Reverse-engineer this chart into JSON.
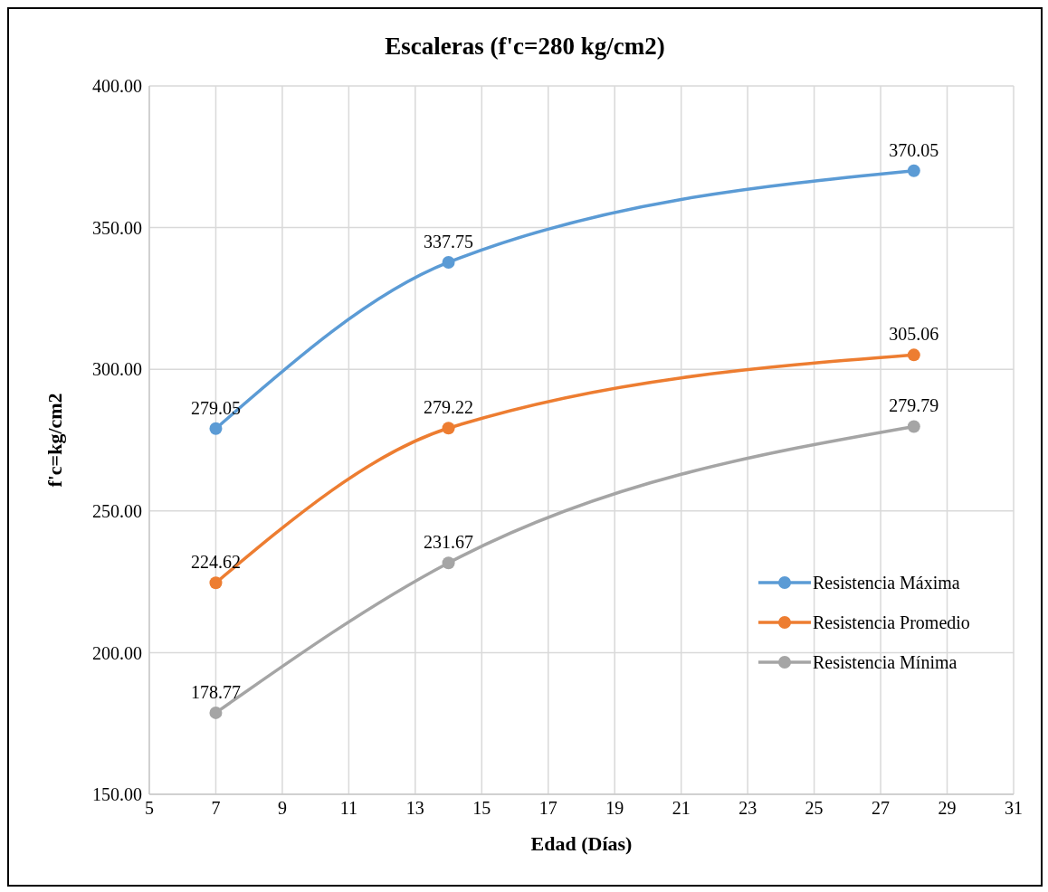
{
  "chart_data": {
    "type": "line",
    "title": "Escaleras (f'c=280 kg/cm2)",
    "xlabel": "Edad (Días)",
    "ylabel": "f'c=kg/cm2",
    "x": [
      7,
      14,
      28
    ],
    "series": [
      {
        "name": "Resistencia Máxima",
        "color": "#5b9bd5",
        "values": [
          279.05,
          337.75,
          370.05
        ]
      },
      {
        "name": "Resistencia Promedio",
        "color": "#ed7d31",
        "values": [
          224.62,
          279.22,
          305.06
        ]
      },
      {
        "name": "Resistencia Mínima",
        "color": "#a5a5a5",
        "values": [
          178.77,
          231.67,
          279.79
        ]
      }
    ],
    "xlim": [
      5,
      31
    ],
    "xticks": [
      5,
      7,
      9,
      11,
      13,
      15,
      17,
      19,
      21,
      23,
      25,
      27,
      29,
      31
    ],
    "ylim": [
      150,
      400
    ],
    "yticks": [
      {
        "value": 150,
        "label": "150.00"
      },
      {
        "value": 200,
        "label": "200.00"
      },
      {
        "value": 250,
        "label": "250.00"
      },
      {
        "value": 300,
        "label": "300.00"
      },
      {
        "value": 350,
        "label": "350.00"
      },
      {
        "value": 400,
        "label": "400.00"
      }
    ],
    "grid": true,
    "legend": "right",
    "marker": "circle",
    "line_style": "solid",
    "data_labels": true
  }
}
